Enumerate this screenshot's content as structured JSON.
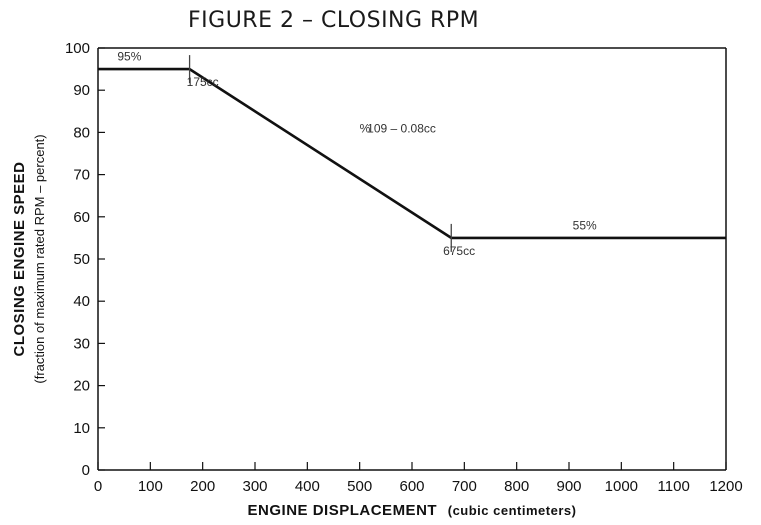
{
  "chart_data": {
    "type": "line",
    "title": "FIGURE 2 – CLOSING RPM",
    "ylabel_main": "CLOSING ENGINE SPEED",
    "ylabel_sub": "(fraction of maximum rated RPM – percent)",
    "xlabel_main": "ENGINE DISPLACEMENT",
    "xlabel_sub": "(cubic centimeters)",
    "xlim": [
      0,
      1200
    ],
    "ylim": [
      0,
      100
    ],
    "xticks": [
      0,
      100,
      200,
      300,
      400,
      500,
      600,
      700,
      800,
      900,
      1000,
      1100,
      1200
    ],
    "yticks": [
      0,
      10,
      20,
      30,
      40,
      50,
      60,
      70,
      80,
      90,
      100
    ],
    "grid": false,
    "series": [
      {
        "x": [
          0,
          175,
          675,
          1200
        ],
        "y": [
          95,
          95,
          55,
          55
        ]
      }
    ],
    "markers": [
      {
        "x": 175,
        "y": 95
      },
      {
        "x": 675,
        "y": 55
      }
    ],
    "annotations": [
      {
        "text": "95%",
        "x": 60,
        "y": 97
      },
      {
        "text": "175cc",
        "x": 200,
        "y": 91
      },
      {
        "text": "%",
        "x": 510,
        "y": 80
      },
      {
        "text": "109 – 0.08cc",
        "x": 580,
        "y": 80
      },
      {
        "text": "675cc",
        "x": 690,
        "y": 51
      },
      {
        "text": "55%",
        "x": 930,
        "y": 57
      }
    ]
  }
}
